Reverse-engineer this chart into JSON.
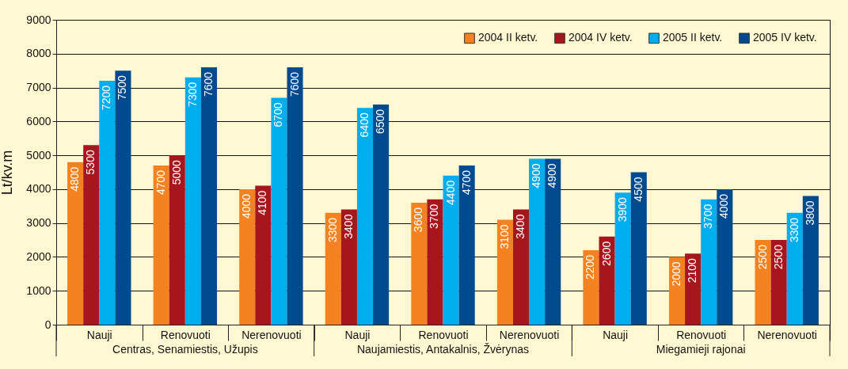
{
  "chart_data": {
    "type": "bar",
    "ylabel": "Lt/kv.m",
    "categories": [
      "Nauji",
      "Renovuoti",
      "Nerenovuoti",
      "Nauji",
      "Renovuoti",
      "Nerenovuoti",
      "Nauji",
      "Renovuoti",
      "Nerenovuoti"
    ],
    "annotations": [
      "Centras, Senamiestis, Užupis",
      "Naujamiestis, Antakalnis, Žvėrynas",
      "Miegamieji rajonai"
    ],
    "series": [
      {
        "name": "2004 II ketv.",
        "color": "#f58220",
        "values": [
          4800,
          4700,
          4000,
          3300,
          3600,
          3100,
          2200,
          2000,
          2500
        ]
      },
      {
        "name": "2004 IV ketv.",
        "color": "#a6161c",
        "values": [
          5300,
          5000,
          4100,
          3400,
          3700,
          3400,
          2600,
          2100,
          2500
        ]
      },
      {
        "name": "2005 II ketv.",
        "color": "#00aeef",
        "values": [
          7200,
          7300,
          6700,
          6400,
          4400,
          4900,
          3900,
          3700,
          3300
        ]
      },
      {
        "name": "2005 IV ketv.",
        "color": "#004a8f",
        "values": [
          7500,
          7600,
          7600,
          6500,
          4700,
          4900,
          4500,
          4000,
          3800
        ]
      }
    ],
    "ylim": [
      0,
      9000
    ],
    "yticks": [
      0,
      1000,
      2000,
      3000,
      4000,
      5000,
      6000,
      7000,
      8000,
      9000
    ],
    "grid": "y",
    "legend": "top right",
    "data_labels": true
  }
}
